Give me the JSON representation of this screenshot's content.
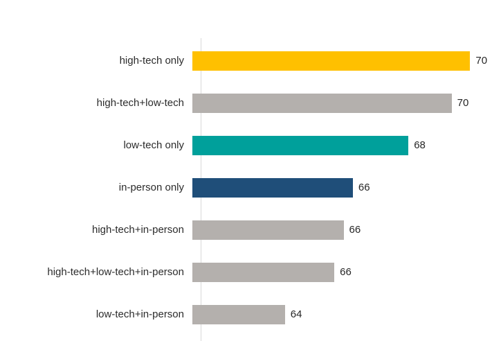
{
  "chart_data": {
    "type": "bar",
    "orientation": "horizontal",
    "title": "",
    "xlabel": "",
    "ylabel": "",
    "grid": false,
    "legend": false,
    "xlim": [
      61,
      71
    ],
    "categories": [
      "high-tech only",
      "high-tech+low-tech",
      "low-tech only",
      "in-person only",
      "high-tech+in-person",
      "high-tech+low-tech+in-person",
      "low-tech+in-person"
    ],
    "values": [
      70,
      70,
      68,
      66,
      66,
      66,
      64
    ],
    "values_precise": [
      70.0,
      69.4,
      68.0,
      66.2,
      65.9,
      65.6,
      64.0
    ],
    "value_labels": [
      "70",
      "70",
      "68",
      "66",
      "66",
      "66",
      "64"
    ],
    "bar_colors": [
      "#FFC000",
      "#B4B0AD",
      "#00A09B",
      "#1F4E79",
      "#B4B0AD",
      "#B4B0AD",
      "#B4B0AD"
    ],
    "colors": {
      "gold": "#FFC000",
      "gray": "#B4B0AD",
      "teal": "#00A09B",
      "navy": "#1F4E79",
      "axis_line": "#D9D9D9",
      "label_text": "#2B2B2B"
    }
  }
}
